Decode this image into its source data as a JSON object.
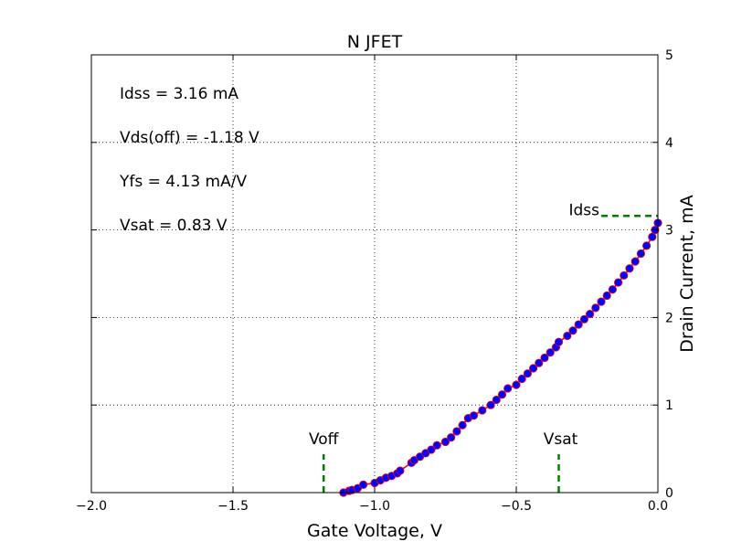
{
  "chart_data": {
    "type": "scatter",
    "title": "N JFET",
    "xlabel": "Gate Voltage, V",
    "ylabel": "Drain Current, mA",
    "xlim": [
      -2.0,
      0.0
    ],
    "ylim": [
      0,
      5
    ],
    "x_ticks": [
      "−2.0",
      "−1.5",
      "−1.0",
      "−0.5",
      "0.0"
    ],
    "y_ticks": [
      "0",
      "1",
      "2",
      "3",
      "4",
      "5"
    ],
    "y_axis_side": "right",
    "grid": true,
    "annotations": [
      "Idss = 3.16 mA",
      "Vds(off) = -1.18 V",
      "Yfs = 4.13 mA/V",
      "Vsat = 0.83 V"
    ],
    "markers": {
      "idss": {
        "label": "Idss",
        "value": 3.16
      },
      "voff": {
        "label": "Voff",
        "x": -1.18
      },
      "vsat": {
        "label": "Vsat",
        "x": -0.35
      }
    },
    "fit_curve": {
      "color": "#ff0000",
      "from_x": -1.1,
      "to_x": 0.0
    },
    "series": [
      {
        "color": "#0000ff",
        "edge_color": "#ff0000",
        "points": [
          [
            -1.11,
            0.0
          ],
          [
            -1.09,
            0.02
          ],
          [
            -1.08,
            0.03
          ],
          [
            -1.06,
            0.05
          ],
          [
            -1.04,
            0.09
          ],
          [
            -1.0,
            0.11
          ],
          [
            -0.98,
            0.14
          ],
          [
            -0.96,
            0.17
          ],
          [
            -0.94,
            0.19
          ],
          [
            -0.92,
            0.22
          ],
          [
            -0.91,
            0.25
          ],
          [
            -0.87,
            0.34
          ],
          [
            -0.86,
            0.37
          ],
          [
            -0.84,
            0.41
          ],
          [
            -0.82,
            0.45
          ],
          [
            -0.8,
            0.49
          ],
          [
            -0.78,
            0.54
          ],
          [
            -0.75,
            0.58
          ],
          [
            -0.73,
            0.63
          ],
          [
            -0.71,
            0.7
          ],
          [
            -0.69,
            0.77
          ],
          [
            -0.67,
            0.85
          ],
          [
            -0.65,
            0.88
          ],
          [
            -0.62,
            0.94
          ],
          [
            -0.59,
            1.0
          ],
          [
            -0.57,
            1.06
          ],
          [
            -0.55,
            1.12
          ],
          [
            -0.53,
            1.19
          ],
          [
            -0.5,
            1.23
          ],
          [
            -0.48,
            1.3
          ],
          [
            -0.46,
            1.36
          ],
          [
            -0.44,
            1.42
          ],
          [
            -0.42,
            1.48
          ],
          [
            -0.4,
            1.54
          ],
          [
            -0.38,
            1.6
          ],
          [
            -0.36,
            1.66
          ],
          [
            -0.35,
            1.72
          ],
          [
            -0.32,
            1.79
          ],
          [
            -0.3,
            1.85
          ],
          [
            -0.28,
            1.92
          ],
          [
            -0.26,
            1.98
          ],
          [
            -0.24,
            2.04
          ],
          [
            -0.22,
            2.11
          ],
          [
            -0.2,
            2.18
          ],
          [
            -0.18,
            2.25
          ],
          [
            -0.16,
            2.32
          ],
          [
            -0.14,
            2.4
          ],
          [
            -0.12,
            2.48
          ],
          [
            -0.1,
            2.56
          ],
          [
            -0.08,
            2.64
          ],
          [
            -0.06,
            2.73
          ],
          [
            -0.04,
            2.82
          ],
          [
            -0.02,
            2.92
          ],
          [
            -0.01,
            3.0
          ],
          [
            0.0,
            3.08
          ]
        ]
      }
    ]
  }
}
